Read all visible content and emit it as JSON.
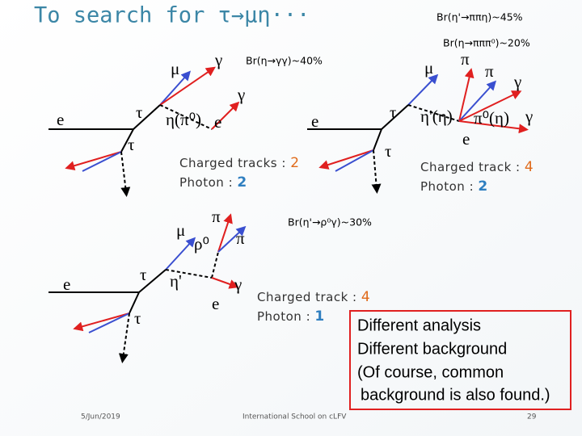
{
  "title": "To search for τ→μη···",
  "branching_ratios": [
    "Br(η'→ππη)~45%",
    "Br(η→πππ⁰)~20%",
    "Br(η→γγ)~40%",
    "Br(η'→ρ⁰γ)~30%"
  ],
  "diagrams": [
    {
      "labels": [
        "e",
        "τ",
        "τ",
        "μ",
        "γ",
        "η(π⁰)",
        "e",
        "γ"
      ],
      "tracks_label": "Charged tracks :",
      "tracks": 2,
      "photons_label": "Photon :",
      "photons": 2
    },
    {
      "labels": [
        "e",
        "τ",
        "τ",
        "μ",
        "π",
        "π",
        "γ",
        "η'(η)",
        "π⁰(η)",
        "γ",
        "e"
      ],
      "tracks_label": "Charged track :",
      "tracks": 4,
      "photons_label": "Photon :",
      "photons": 2
    },
    {
      "labels": [
        "e",
        "τ",
        "τ",
        "μ",
        "π",
        "ρ⁰",
        "π",
        "η'",
        "γ",
        "e"
      ],
      "tracks_label": "Charged track :",
      "tracks": 4,
      "photons_label": "Photon :",
      "photons": 1
    }
  ],
  "note": [
    "Different analysis",
    "Different background",
    "(Of course, common",
    "background is also found.)"
  ],
  "footer": {
    "date": "5/Jun/2019",
    "event": "International School on cLFV",
    "page": "29"
  }
}
